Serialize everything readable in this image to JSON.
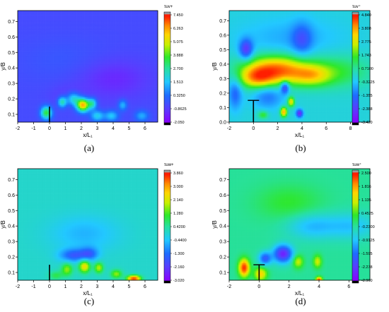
{
  "panels": [
    {
      "label": "(a)",
      "cbar_title": "τuv+"
    },
    {
      "label": "(b)",
      "cbar_title": "τuv⁺"
    },
    {
      "label": "(c)",
      "cbar_title": "τuw+"
    },
    {
      "label": "(d)",
      "cbar_title": "τuw⁺"
    }
  ],
  "chart_data": [
    {
      "type": "heatmap",
      "ylabel": "y/B",
      "xlabel": "x/L₁",
      "xlim": [
        -2,
        6.8
      ],
      "ylim": [
        0.05,
        0.77
      ],
      "xticks": [
        "-2",
        "-1",
        "0",
        "1",
        "2",
        "3",
        "4",
        "5",
        "6"
      ],
      "xtick_values": [
        -2,
        -1,
        0,
        1,
        2,
        3,
        4,
        5,
        6
      ],
      "yticks": [
        "0.1",
        "0.2",
        "0.3",
        "0.4",
        "0.5",
        "0.6",
        "0.7"
      ],
      "ytick_values": [
        0.1,
        0.2,
        0.3,
        0.4,
        0.5,
        0.6,
        0.7
      ],
      "colorbar_ticks": [
        "7.450",
        "6.263",
        "5.075",
        "3.888",
        "2.700",
        "1.513",
        "0.3250",
        "-0.8625",
        "-2.050"
      ],
      "vmin": -2.05,
      "vmax": 7.45,
      "background_value": -0.5,
      "blobs": [
        {
          "x": 4.0,
          "y": 0.33,
          "sx": 1.6,
          "sy": 0.09,
          "v": -1.3
        },
        {
          "x": 1.2,
          "y": 0.22,
          "sx": 0.8,
          "sy": 0.05,
          "v": -0.9
        },
        {
          "x": 1.0,
          "y": 0.45,
          "sx": 2.0,
          "sy": 0.1,
          "v": -0.2
        },
        {
          "x": -0.2,
          "y": 0.11,
          "sx": 0.25,
          "sy": 0.03,
          "v": 3.5
        },
        {
          "x": 0.8,
          "y": 0.18,
          "sx": 0.2,
          "sy": 0.025,
          "v": 2.6
        },
        {
          "x": 1.5,
          "y": 0.2,
          "sx": 0.3,
          "sy": 0.03,
          "v": 2.2
        },
        {
          "x": 2.1,
          "y": 0.16,
          "sx": 0.28,
          "sy": 0.03,
          "v": 6.0
        },
        {
          "x": 2.7,
          "y": 0.17,
          "sx": 0.2,
          "sy": 0.025,
          "v": 2.3
        },
        {
          "x": 3.0,
          "y": 0.09,
          "sx": 0.3,
          "sy": 0.025,
          "v": 1.8
        },
        {
          "x": 3.9,
          "y": 0.09,
          "sx": 0.3,
          "sy": 0.025,
          "v": 1.6
        },
        {
          "x": 4.6,
          "y": 0.16,
          "sx": 0.2,
          "sy": 0.025,
          "v": 1.4
        },
        {
          "x": 5.8,
          "y": 0.09,
          "sx": 0.3,
          "sy": 0.025,
          "v": 1.2
        }
      ],
      "marker": {
        "x": 0,
        "y0": 0.05,
        "y1": 0.15,
        "bar": false
      }
    },
    {
      "type": "heatmap",
      "ylabel": "y/B",
      "xlabel": "x/L₁",
      "xlim": [
        -2,
        9.6
      ],
      "ylim": [
        0.0,
        0.77
      ],
      "xticks": [
        "-2",
        "0",
        "2",
        "4",
        "6",
        "8"
      ],
      "xtick_values": [
        -2,
        0,
        2,
        4,
        6,
        8
      ],
      "yticks": [
        "0.0",
        "0.1",
        "0.2",
        "0.3",
        "0.4",
        "0.5",
        "0.6",
        "0.7"
      ],
      "ytick_values": [
        0.0,
        0.1,
        0.2,
        0.3,
        0.4,
        0.5,
        0.6,
        0.7
      ],
      "colorbar_ticks": [
        "4.840",
        "3.808",
        "2.775",
        "1.743",
        "0.7100",
        "-0.3225",
        "-1.355",
        "-2.388",
        "-3.420"
      ],
      "vmin": -3.42,
      "vmax": 4.84,
      "background_value": 0.1,
      "blobs": [
        {
          "x": 1.8,
          "y": 0.36,
          "sx": 1.9,
          "sy": 0.07,
          "v": 4.2
        },
        {
          "x": 0.3,
          "y": 0.3,
          "sx": 1.0,
          "sy": 0.05,
          "v": 2.5
        },
        {
          "x": 4.8,
          "y": 0.32,
          "sx": 1.1,
          "sy": 0.05,
          "v": 2.0
        },
        {
          "x": 6.8,
          "y": 0.35,
          "sx": 2.0,
          "sy": 0.08,
          "v": 1.4
        },
        {
          "x": 3.0,
          "y": 0.58,
          "sx": 3.0,
          "sy": 0.1,
          "v": -0.6
        },
        {
          "x": -0.6,
          "y": 0.5,
          "sx": 0.4,
          "sy": 0.05,
          "v": -2.4
        },
        {
          "x": 4.0,
          "y": 0.57,
          "sx": 0.6,
          "sy": 0.08,
          "v": -1.4
        },
        {
          "x": -1.5,
          "y": 0.2,
          "sx": 0.4,
          "sy": 0.08,
          "v": -1.5
        },
        {
          "x": 1.2,
          "y": 0.18,
          "sx": 0.9,
          "sy": 0.06,
          "v": -1.3
        },
        {
          "x": 2.6,
          "y": 0.24,
          "sx": 0.25,
          "sy": 0.03,
          "v": -2.6
        },
        {
          "x": 2.5,
          "y": 0.07,
          "sx": 0.2,
          "sy": 0.025,
          "v": 3.6
        },
        {
          "x": 3.1,
          "y": 0.14,
          "sx": 0.2,
          "sy": 0.025,
          "v": 3.0
        },
        {
          "x": 3.8,
          "y": 0.06,
          "sx": 0.2,
          "sy": 0.02,
          "v": -2.8
        },
        {
          "x": 0.8,
          "y": 0.05,
          "sx": 0.3,
          "sy": 0.02,
          "v": 1.6
        }
      ],
      "marker": {
        "x": 0,
        "y0": 0.0,
        "y1": 0.15,
        "bar": true
      }
    },
    {
      "type": "heatmap",
      "ylabel": "y/B",
      "xlabel": "x/L₁",
      "xlim": [
        -2,
        6.8
      ],
      "ylim": [
        0.05,
        0.77
      ],
      "xticks": [
        "-2",
        "-1",
        "0",
        "1",
        "2",
        "3",
        "4",
        "5",
        "6"
      ],
      "xtick_values": [
        -2,
        -1,
        0,
        1,
        2,
        3,
        4,
        5,
        6
      ],
      "yticks": [
        "0.1",
        "0.2",
        "0.3",
        "0.4",
        "0.5",
        "0.6",
        "0.7"
      ],
      "ytick_values": [
        0.1,
        0.2,
        0.3,
        0.4,
        0.5,
        0.6,
        0.7
      ],
      "colorbar_ticks": [
        "3.860",
        "3.000",
        "2.140",
        "1.280",
        "0.4200",
        "-0.4400",
        "-1.300",
        "-2.160",
        "-3.020"
      ],
      "vmin": -3.02,
      "vmax": 3.86,
      "background_value": 0.05,
      "blobs": [
        {
          "x": 2.2,
          "y": 0.35,
          "sx": 1.5,
          "sy": 0.08,
          "v": -0.6
        },
        {
          "x": 1.5,
          "y": 0.21,
          "sx": 0.6,
          "sy": 0.03,
          "v": -1.5
        },
        {
          "x": 2.5,
          "y": 0.22,
          "sx": 0.4,
          "sy": 0.03,
          "v": -1.3
        },
        {
          "x": 1.1,
          "y": 0.12,
          "sx": 0.25,
          "sy": 0.03,
          "v": 1.6
        },
        {
          "x": 2.2,
          "y": 0.14,
          "sx": 0.25,
          "sy": 0.03,
          "v": 2.4
        },
        {
          "x": 3.1,
          "y": 0.13,
          "sx": 0.2,
          "sy": 0.025,
          "v": 1.8
        },
        {
          "x": 4.2,
          "y": 0.09,
          "sx": 0.25,
          "sy": 0.02,
          "v": 1.6
        },
        {
          "x": 5.3,
          "y": 0.06,
          "sx": 0.3,
          "sy": 0.015,
          "v": 3.6
        },
        {
          "x": 0.4,
          "y": 0.08,
          "sx": 0.3,
          "sy": 0.02,
          "v": 0.9
        }
      ],
      "marker": {
        "x": 0,
        "y0": 0.05,
        "y1": 0.15,
        "bar": false
      }
    },
    {
      "type": "heatmap",
      "ylabel": "y/B",
      "xlabel": "x/L₁",
      "xlim": [
        -2,
        7.4
      ],
      "ylim": [
        0.05,
        0.77
      ],
      "xticks": [
        "-2",
        "0",
        "2",
        "4",
        "6"
      ],
      "xtick_values": [
        -2,
        0,
        2,
        4,
        6
      ],
      "yticks": [
        "0.1",
        "0.2",
        "0.3",
        "0.4",
        "0.5",
        "0.6",
        "0.7"
      ],
      "ytick_values": [
        0.1,
        0.2,
        0.3,
        0.4,
        0.5,
        0.6,
        0.7
      ],
      "colorbar_ticks": [
        "2.500",
        "1.816",
        "1.135",
        "0.4525",
        "-0.2300",
        "-0.9125",
        "-1.595",
        "-2.278",
        "-2.960"
      ],
      "vmin": -2.96,
      "vmax": 2.5,
      "background_value": -0.2,
      "blobs": [
        {
          "x": 1.6,
          "y": 0.22,
          "sx": 0.45,
          "sy": 0.04,
          "v": -2.6
        },
        {
          "x": 0.4,
          "y": 0.19,
          "sx": 0.3,
          "sy": 0.03,
          "v": -1.8
        },
        {
          "x": -1.0,
          "y": 0.13,
          "sx": 0.25,
          "sy": 0.04,
          "v": 2.4
        },
        {
          "x": 0.1,
          "y": 0.09,
          "sx": 0.3,
          "sy": 0.03,
          "v": 1.4
        },
        {
          "x": 2.6,
          "y": 0.17,
          "sx": 0.25,
          "sy": 0.03,
          "v": 1.0
        },
        {
          "x": 3.9,
          "y": 0.17,
          "sx": 0.2,
          "sy": 0.03,
          "v": 1.0
        },
        {
          "x": 3.5,
          "y": 0.4,
          "sx": 1.2,
          "sy": 0.06,
          "v": -1.0
        },
        {
          "x": 6.2,
          "y": 0.4,
          "sx": 1.2,
          "sy": 0.06,
          "v": -0.9
        },
        {
          "x": 2.0,
          "y": 0.55,
          "sx": 1.5,
          "sy": 0.08,
          "v": 0.3
        },
        {
          "x": 4.0,
          "y": 0.05,
          "sx": 0.15,
          "sy": 0.015,
          "v": 2.3
        }
      ],
      "marker": {
        "x": 0,
        "y0": 0.05,
        "y1": 0.15,
        "bar": true
      }
    }
  ]
}
